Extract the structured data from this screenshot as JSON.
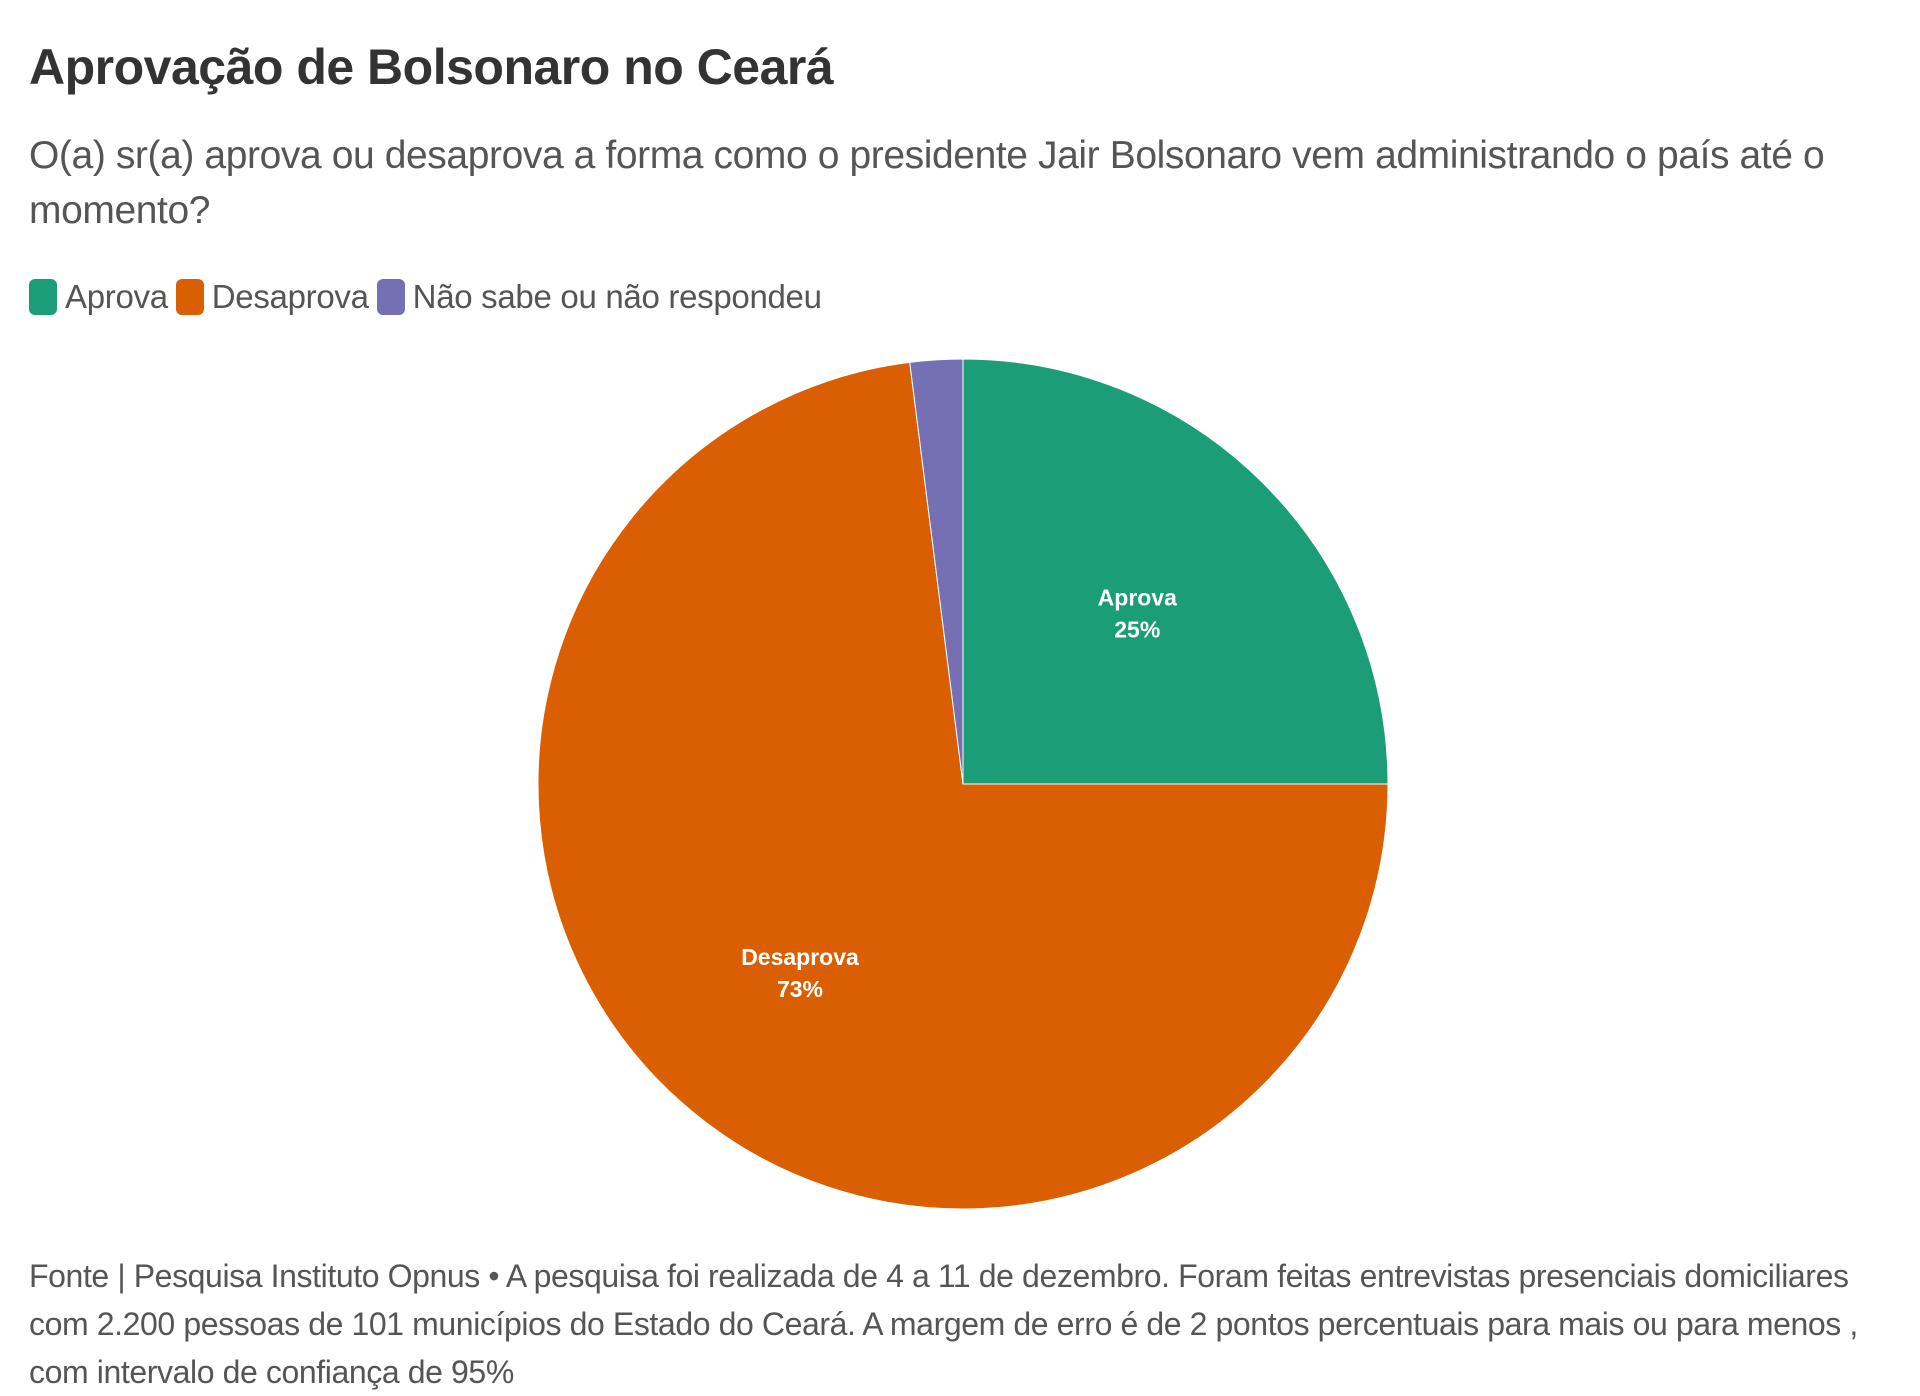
{
  "header": {
    "title": "Aprovação de Bolsonaro no Ceará",
    "subtitle": "O(a) sr(a) aprova ou desaprova a forma como o presidente Jair Bolsonaro vem administrando o país até o momento?"
  },
  "legend": [
    {
      "label": "Aprova",
      "color": "#1b9e77"
    },
    {
      "label": "Desaprova",
      "color": "#d95f02"
    },
    {
      "label": "Não sabe ou não respondeu",
      "color": "#7570b3"
    }
  ],
  "footer": {
    "text": "Fonte | Pesquisa Instituto Opnus • A pesquisa foi realizada de 4 a 11 de dezembro. Foram feitas entrevistas presenciais domiciliares com 2.200 pessoas de 101 municípios do Estado do Ceará. A margem de erro é de 2 pontos percentuais para mais ou para menos , com intervalo de confiança de 95%"
  },
  "chart_data": {
    "type": "pie",
    "title": "Aprovação de Bolsonaro no Ceará",
    "subtitle": "O(a) sr(a) aprova ou desaprova a forma como o presidente Jair Bolsonaro vem administrando o país até o momento?",
    "categories": [
      "Aprova",
      "Desaprova",
      "Não sabe ou não respondeu"
    ],
    "values": [
      25,
      73,
      2
    ],
    "unit": "%",
    "colors": [
      "#1b9e77",
      "#d95f02",
      "#7570b3"
    ],
    "slice_labels": [
      {
        "name": "Aprova",
        "value": "25%"
      },
      {
        "name": "Desaprova",
        "value": "73%"
      },
      {
        "name": "Não sabe ou não respondeu",
        "value": ""
      }
    ],
    "legend_position": "top-left",
    "start_angle": "12 o'clock, clockwise",
    "source": "Fonte | Pesquisa Instituto Opnus"
  }
}
